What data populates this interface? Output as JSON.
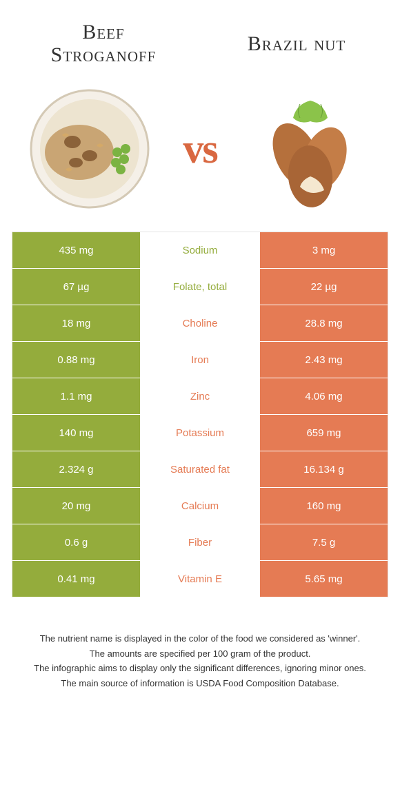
{
  "colors": {
    "left_food": "#94ac3c",
    "right_food": "#e57b54",
    "vs": "#d96841",
    "row_border": "#ffffff"
  },
  "header": {
    "left_title": "Beef Stroganoff",
    "right_title": "Brazil nut",
    "vs": "vs"
  },
  "table": {
    "rows": [
      {
        "left": "435 mg",
        "label": "Sodium",
        "right": "3 mg",
        "winner": "left"
      },
      {
        "left": "67 µg",
        "label": "Folate, total",
        "right": "22 µg",
        "winner": "left"
      },
      {
        "left": "18 mg",
        "label": "Choline",
        "right": "28.8 mg",
        "winner": "right"
      },
      {
        "left": "0.88 mg",
        "label": "Iron",
        "right": "2.43 mg",
        "winner": "right"
      },
      {
        "left": "1.1 mg",
        "label": "Zinc",
        "right": "4.06 mg",
        "winner": "right"
      },
      {
        "left": "140 mg",
        "label": "Potassium",
        "right": "659 mg",
        "winner": "right"
      },
      {
        "left": "2.324 g",
        "label": "Saturated fat",
        "right": "16.134 g",
        "winner": "right"
      },
      {
        "left": "20 mg",
        "label": "Calcium",
        "right": "160 mg",
        "winner": "right"
      },
      {
        "left": "0.6 g",
        "label": "Fiber",
        "right": "7.5 g",
        "winner": "right"
      },
      {
        "left": "0.41 mg",
        "label": "Vitamin E",
        "right": "5.65 mg",
        "winner": "right"
      }
    ]
  },
  "footnotes": [
    "The nutrient name is displayed in the color of the food we considered as 'winner'.",
    "The amounts are specified per 100 gram of the product.",
    "The infographic aims to display only the significant differences, ignoring minor ones.",
    "The main source of information is USDA Food Composition Database."
  ]
}
